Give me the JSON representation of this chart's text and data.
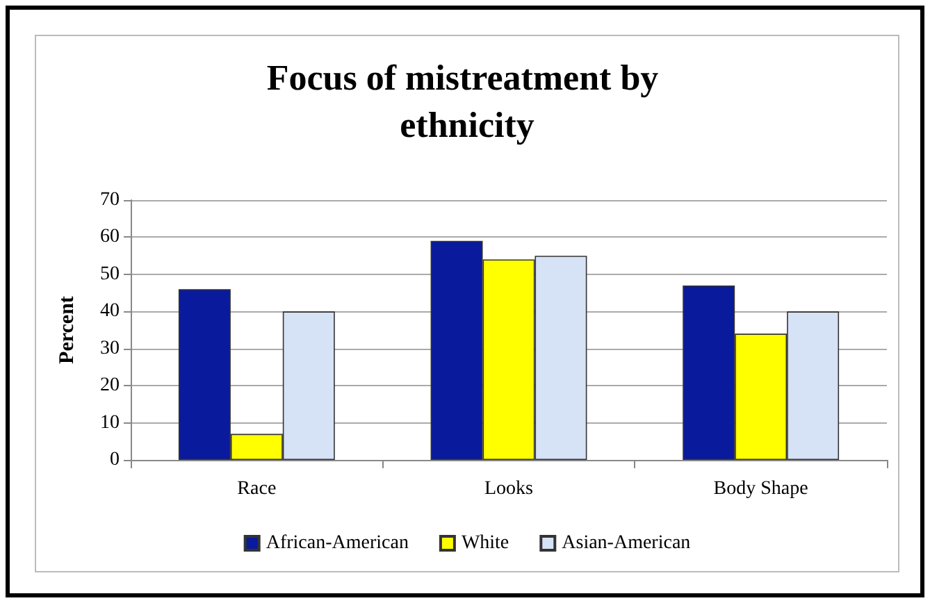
{
  "chart_data": {
    "type": "bar",
    "title": "Focus of mistreatment by ethnicity",
    "ylabel": "Percent",
    "categories": [
      "Race",
      "Looks",
      "Body Shape"
    ],
    "series": [
      {
        "name": "African-American",
        "color": "#0a1a9c",
        "values": [
          46,
          59,
          47
        ]
      },
      {
        "name": "White",
        "color": "#ffff00",
        "values": [
          7,
          54,
          34
        ]
      },
      {
        "name": "Asian-American",
        "color": "#d6e2f6",
        "values": [
          40,
          55,
          40
        ]
      }
    ],
    "ylim": [
      0,
      70
    ],
    "yticks": [
      0,
      10,
      20,
      30,
      40,
      50,
      60,
      70
    ],
    "grid": "y",
    "legend": "bottom"
  }
}
